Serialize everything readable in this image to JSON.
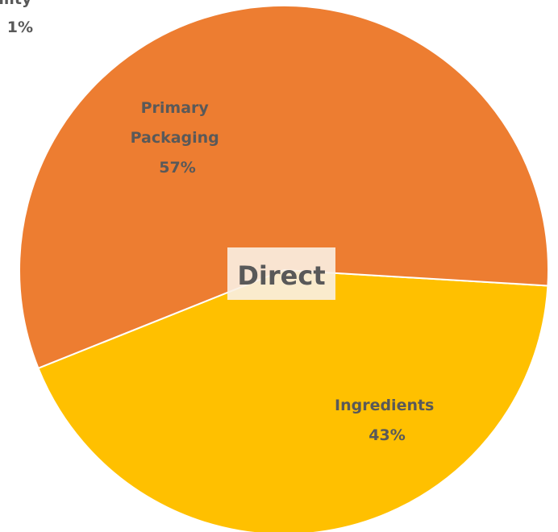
{
  "chart_data": {
    "type": "pie",
    "title": "Direct",
    "slices": [
      {
        "label": "Primary Packaging",
        "value": 57,
        "display": "57%",
        "color": "#ED7D31"
      },
      {
        "label": "Ingredients",
        "value": 43,
        "display": "43%",
        "color": "#FFC000"
      }
    ],
    "partial_label": {
      "label": "Hospitality",
      "display": "1%"
    }
  }
}
